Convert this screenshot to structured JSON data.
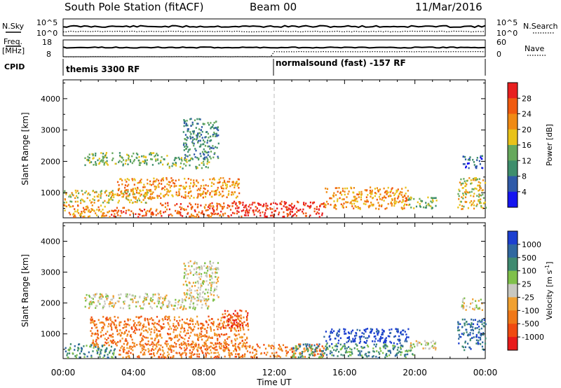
{
  "header": {
    "title": "South Pole Station (fitACF)",
    "beam": "Beam 00",
    "date": "11/Mar/2016"
  },
  "noise_panel": {
    "left_label": "N.Sky",
    "left_ticks": [
      "10^5",
      "10^0"
    ],
    "right_label": "N.Search",
    "right_ticks": [
      "10^5",
      "10^0"
    ]
  },
  "freq_panel": {
    "left_label_line1": "Freq.",
    "left_label_line2": "[MHz]",
    "left_ticks": [
      "18",
      "8"
    ],
    "right_label": "Nave",
    "right_ticks": [
      "60",
      "0"
    ]
  },
  "cpid_panel": {
    "label": "CPID",
    "segments": [
      {
        "text": "themis 3300 RF",
        "start_hour": 0
      },
      {
        "text": "normalsound (fast) -157 RF",
        "start_hour": 12
      }
    ]
  },
  "time_axis": {
    "label": "Time UT",
    "ticks": [
      "00:00",
      "04:00",
      "08:00",
      "12:00",
      "16:00",
      "20:00",
      "00:00"
    ]
  },
  "chart_data": [
    {
      "type": "heatmap",
      "name": "power",
      "ylabel": "Slant Range [km]",
      "xlabel": "Time UT",
      "xlim_hours": [
        0,
        24
      ],
      "ylim_km": [
        200,
        4600
      ],
      "yticks": [
        1000,
        2000,
        3000,
        4000
      ],
      "ytick_labels": [
        "1000",
        "2000",
        "3000",
        "4000"
      ],
      "colorbar": {
        "label": "Power [dB]",
        "ticks": [
          "4",
          "8",
          "12",
          "16",
          "20",
          "24",
          "28"
        ],
        "colors": [
          "#1515f0",
          "#2f5aa8",
          "#3e8e6c",
          "#66a85c",
          "#e8c21a",
          "#f08a14",
          "#f05a0f",
          "#e81f1f"
        ]
      },
      "scatter_bands": [
        {
          "t0": 0.0,
          "t1": 2.6,
          "r0": 250,
          "r1": 650,
          "level": 5
        },
        {
          "t0": 2.6,
          "t1": 5.5,
          "r0": 250,
          "r1": 550,
          "level": 6
        },
        {
          "t0": 5.5,
          "t1": 9.5,
          "r0": 250,
          "r1": 700,
          "level": 6
        },
        {
          "t0": 9.5,
          "t1": 14.8,
          "r0": 250,
          "r1": 750,
          "level": 7
        },
        {
          "t0": 0.0,
          "t1": 5.0,
          "r0": 700,
          "r1": 1100,
          "level": 4
        },
        {
          "t0": 3.0,
          "t1": 10.0,
          "r0": 850,
          "r1": 1500,
          "level": 5
        },
        {
          "t0": 1.2,
          "t1": 6.0,
          "r0": 1900,
          "r1": 2300,
          "level": 3
        },
        {
          "t0": 6.0,
          "t1": 8.3,
          "r0": 1800,
          "r1": 2150,
          "level": 3
        },
        {
          "t0": 6.8,
          "t1": 8.8,
          "r0": 2100,
          "r1": 3400,
          "level": 2
        },
        {
          "t0": 14.8,
          "t1": 19.6,
          "r0": 500,
          "r1": 1200,
          "level": 5
        },
        {
          "t0": 19.6,
          "t1": 21.2,
          "r0": 500,
          "r1": 900,
          "level": 3
        },
        {
          "t0": 22.4,
          "t1": 24.0,
          "r0": 500,
          "r1": 1500,
          "level": 4
        },
        {
          "t0": 22.6,
          "t1": 23.8,
          "r0": 1800,
          "r1": 2200,
          "level": 1
        }
      ]
    },
    {
      "type": "heatmap",
      "name": "velocity",
      "ylabel": "Slant Range [km]",
      "xlabel": "Time UT",
      "xlim_hours": [
        0,
        24
      ],
      "ylim_km": [
        200,
        4600
      ],
      "yticks": [
        1000,
        2000,
        3000,
        4000
      ],
      "ytick_labels": [
        "1000",
        "2000",
        "3000",
        "4000"
      ],
      "colorbar": {
        "label": "Velocity [m s^-1]",
        "ticks": [
          "1000",
          "500",
          "100",
          "25",
          "-25",
          "-100",
          "-500",
          "-1000"
        ],
        "colors": [
          "#1c3fd0",
          "#3068a0",
          "#3f8a70",
          "#7fc04a",
          "#c8c8c0",
          "#f0a030",
          "#f07818",
          "#f04a10",
          "#e81a1a"
        ]
      },
      "scatter_bands": [
        {
          "t0": 0.0,
          "t1": 3.0,
          "r0": 250,
          "r1": 700,
          "level": 2
        },
        {
          "t0": 3.0,
          "t1": 14.8,
          "r0": 250,
          "r1": 700,
          "level": 6
        },
        {
          "t0": 1.5,
          "t1": 10.5,
          "r0": 600,
          "r1": 1600,
          "level": 6
        },
        {
          "t0": 1.2,
          "t1": 6.0,
          "r0": 1850,
          "r1": 2350,
          "level": 4
        },
        {
          "t0": 6.0,
          "t1": 8.3,
          "r0": 1800,
          "r1": 2200,
          "level": 4
        },
        {
          "t0": 6.8,
          "t1": 8.8,
          "r0": 2100,
          "r1": 3400,
          "level": 4
        },
        {
          "t0": 9.0,
          "t1": 10.5,
          "r0": 1200,
          "r1": 1800,
          "level": 7
        },
        {
          "t0": 14.8,
          "t1": 19.6,
          "r0": 700,
          "r1": 1200,
          "level": 0
        },
        {
          "t0": 13.0,
          "t1": 20.0,
          "r0": 250,
          "r1": 700,
          "level": 2
        },
        {
          "t0": 19.6,
          "t1": 21.2,
          "r0": 500,
          "r1": 800,
          "level": 4
        },
        {
          "t0": 22.4,
          "t1": 24.0,
          "r0": 500,
          "r1": 1500,
          "level": 1
        },
        {
          "t0": 22.6,
          "t1": 23.8,
          "r0": 1800,
          "r1": 2200,
          "level": 4
        }
      ]
    }
  ],
  "noise_series": {
    "sky_level": 0.55,
    "search_level": 0.25,
    "freq_level": 0.55,
    "nave_level_left": 0.0,
    "nave_level_right": 0.3
  }
}
